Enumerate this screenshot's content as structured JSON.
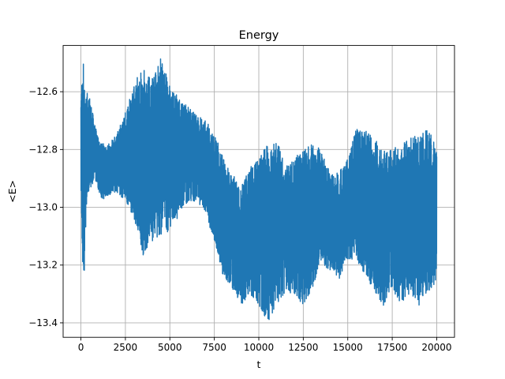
{
  "chart_data": {
    "type": "line",
    "title": "Energy",
    "xlabel": "t",
    "ylabel": "<E>",
    "xlim": [
      -1000,
      21000
    ],
    "ylim": [
      -13.45,
      -12.44
    ],
    "grid": true,
    "xticks": [
      0,
      2500,
      5000,
      7500,
      10000,
      12500,
      15000,
      17500,
      20000
    ],
    "xtick_labels": [
      "0",
      "2500",
      "5000",
      "7500",
      "10000",
      "12500",
      "15000",
      "17500",
      "20000"
    ],
    "yticks": [
      -13.4,
      -13.2,
      -13.0,
      -12.8,
      -12.6
    ],
    "ytick_labels": [
      "−13.4",
      "−13.2",
      "−13.0",
      "−12.8",
      "−12.6"
    ],
    "series": [
      {
        "color": "#1f77b4",
        "envelope": {
          "x": [
            0,
            100,
            200,
            300,
            500,
            800,
            1100,
            1500,
            2000,
            2500,
            3000,
            3500,
            4000,
            4500,
            5000,
            5500,
            6000,
            6500,
            7000,
            7500,
            8000,
            8500,
            9000,
            9500,
            10000,
            10500,
            11000,
            11500,
            12000,
            12500,
            13000,
            13500,
            14000,
            14500,
            15000,
            15500,
            16000,
            16500,
            17000,
            17500,
            18000,
            18500,
            19000,
            19500,
            20000
          ],
          "upper": [
            -12.63,
            -12.47,
            -12.55,
            -12.6,
            -12.62,
            -12.72,
            -12.78,
            -12.78,
            -12.75,
            -12.67,
            -12.56,
            -12.52,
            -12.55,
            -12.48,
            -12.58,
            -12.62,
            -12.65,
            -12.68,
            -12.7,
            -12.74,
            -12.83,
            -12.88,
            -12.93,
            -12.86,
            -12.83,
            -12.78,
            -12.76,
            -12.86,
            -12.83,
            -12.8,
            -12.78,
            -12.8,
            -12.88,
            -12.88,
            -12.83,
            -12.72,
            -12.73,
            -12.76,
            -12.8,
            -12.8,
            -12.78,
            -12.76,
            -12.75,
            -12.72,
            -12.8
          ],
          "lower": [
            -12.95,
            -13.2,
            -13.27,
            -13.0,
            -12.95,
            -12.9,
            -12.98,
            -12.96,
            -12.95,
            -12.98,
            -13.05,
            -13.17,
            -13.12,
            -13.1,
            -13.08,
            -13.03,
            -12.98,
            -12.98,
            -13.02,
            -13.12,
            -13.24,
            -13.28,
            -13.34,
            -13.3,
            -13.34,
            -13.4,
            -13.34,
            -13.3,
            -13.3,
            -13.34,
            -13.28,
            -13.2,
            -13.22,
            -13.25,
            -13.18,
            -13.18,
            -13.24,
            -13.3,
            -13.34,
            -13.28,
            -13.34,
            -13.3,
            -13.34,
            -13.3,
            -13.26
          ]
        }
      }
    ]
  }
}
